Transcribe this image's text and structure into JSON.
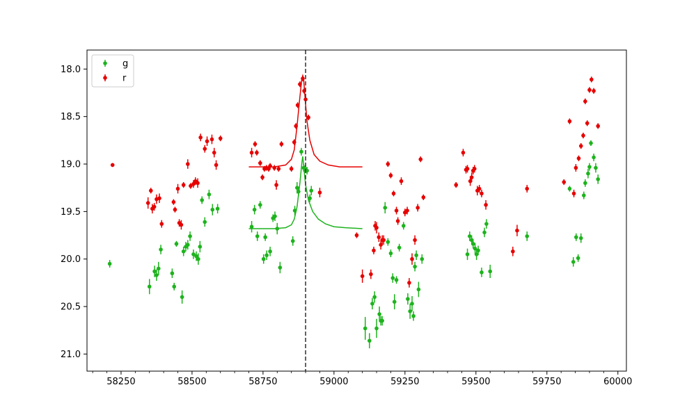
{
  "chart_data": {
    "type": "scatter",
    "title": "",
    "xlabel": "",
    "ylabel": "",
    "xlim": [
      58130,
      60030
    ],
    "ylim": [
      21.18,
      17.8
    ],
    "y_inverted": true,
    "grid": false,
    "legend_placement": "top-left",
    "x_ticks": [
      58250,
      58500,
      58750,
      59000,
      59250,
      59500,
      59750,
      60000
    ],
    "x_tick_labels": [
      "58250",
      "58500",
      "58750",
      "59000",
      "59250",
      "59500",
      "59750",
      "60000"
    ],
    "y_ticks": [
      18.0,
      18.5,
      19.0,
      19.5,
      20.0,
      20.5,
      21.0
    ],
    "y_tick_labels": [
      "18.0",
      "18.5",
      "19.0",
      "19.5",
      "20.0",
      "20.5",
      "21.0"
    ],
    "vline": {
      "x": 58900,
      "style": "dashed",
      "color": "#3c3c3c"
    },
    "series": [
      {
        "name": "g",
        "color": "#1db31d",
        "marker": "errorbar",
        "points": [
          [
            58210,
            20.05,
            0.04
          ],
          [
            58350,
            20.29,
            0.08
          ],
          [
            58368,
            20.13,
            0.06
          ],
          [
            58375,
            20.17,
            0.06
          ],
          [
            58382,
            20.1,
            0.07
          ],
          [
            58390,
            19.9,
            0.05
          ],
          [
            58430,
            20.15,
            0.05
          ],
          [
            58437,
            20.29,
            0.04
          ],
          [
            58445,
            19.84,
            0.03
          ],
          [
            58465,
            20.4,
            0.07
          ],
          [
            58470,
            19.92,
            0.05
          ],
          [
            58478,
            19.87,
            0.05
          ],
          [
            58485,
            19.85,
            0.05
          ],
          [
            58493,
            19.76,
            0.05
          ],
          [
            58505,
            19.95,
            0.05
          ],
          [
            58515,
            19.97,
            0.05
          ],
          [
            58522,
            20.0,
            0.06
          ],
          [
            58528,
            19.87,
            0.06
          ],
          [
            58535,
            19.38,
            0.04
          ],
          [
            58545,
            19.61,
            0.05
          ],
          [
            58560,
            19.32,
            0.05
          ],
          [
            58572,
            19.48,
            0.06
          ],
          [
            58590,
            19.47,
            0.05
          ],
          [
            58710,
            19.66,
            0.06
          ],
          [
            58720,
            19.48,
            0.05
          ],
          [
            58730,
            19.76,
            0.05
          ],
          [
            58740,
            19.43,
            0.04
          ],
          [
            58752,
            20.0,
            0.05
          ],
          [
            58758,
            19.77,
            0.04
          ],
          [
            58763,
            19.96,
            0.05
          ],
          [
            58775,
            19.92,
            0.05
          ],
          [
            58785,
            19.57,
            0.04
          ],
          [
            58792,
            19.55,
            0.05
          ],
          [
            58800,
            19.68,
            0.06
          ],
          [
            58810,
            20.09,
            0.06
          ],
          [
            58855,
            19.81,
            0.05
          ],
          [
            58862,
            19.49,
            0.05
          ],
          [
            58870,
            19.25,
            0.06
          ],
          [
            58875,
            19.29,
            0.05
          ],
          [
            58885,
            18.87,
            0.04
          ],
          [
            58893,
            19.04,
            0.04
          ],
          [
            58898,
            19.05,
            0.04
          ],
          [
            58905,
            19.07,
            0.04
          ],
          [
            58915,
            19.36,
            0.04
          ],
          [
            58920,
            19.28,
            0.05
          ],
          [
            59110,
            20.73,
            0.12
          ],
          [
            59125,
            20.86,
            0.08
          ],
          [
            59135,
            20.47,
            0.06
          ],
          [
            59143,
            20.4,
            0.06
          ],
          [
            59150,
            20.73,
            0.1
          ],
          [
            59160,
            20.58,
            0.08
          ],
          [
            59165,
            20.65,
            0.05
          ],
          [
            59170,
            20.65,
            0.05
          ],
          [
            59180,
            19.46,
            0.06
          ],
          [
            59190,
            19.82,
            0.04
          ],
          [
            59200,
            19.94,
            0.04
          ],
          [
            59207,
            20.2,
            0.05
          ],
          [
            59213,
            20.45,
            0.08
          ],
          [
            59220,
            20.22,
            0.04
          ],
          [
            59230,
            19.88,
            0.04
          ],
          [
            59245,
            19.65,
            0.04
          ],
          [
            59260,
            20.42,
            0.06
          ],
          [
            59268,
            20.55,
            0.08
          ],
          [
            59275,
            20.47,
            0.08
          ],
          [
            59280,
            20.6,
            0.05
          ],
          [
            59285,
            20.08,
            0.05
          ],
          [
            59290,
            19.96,
            0.05
          ],
          [
            59298,
            20.32,
            0.08
          ],
          [
            59310,
            20.0,
            0.05
          ],
          [
            59470,
            19.95,
            0.06
          ],
          [
            59478,
            19.76,
            0.05
          ],
          [
            59485,
            19.8,
            0.05
          ],
          [
            59490,
            19.84,
            0.05
          ],
          [
            59497,
            19.89,
            0.06
          ],
          [
            59502,
            19.95,
            0.06
          ],
          [
            59508,
            19.91,
            0.05
          ],
          [
            59520,
            20.14,
            0.05
          ],
          [
            59530,
            19.72,
            0.05
          ],
          [
            59537,
            19.63,
            0.05
          ],
          [
            59550,
            20.13,
            0.07
          ],
          [
            59680,
            19.76,
            0.05
          ],
          [
            59830,
            19.26,
            0.03
          ],
          [
            59843,
            20.03,
            0.05
          ],
          [
            59853,
            19.77,
            0.04
          ],
          [
            59860,
            19.99,
            0.04
          ],
          [
            59870,
            19.78,
            0.05
          ],
          [
            59880,
            19.33,
            0.04
          ],
          [
            59885,
            19.2,
            0.04
          ],
          [
            59895,
            19.1,
            0.05
          ],
          [
            59900,
            19.03,
            0.04
          ],
          [
            59905,
            18.78,
            0.03
          ],
          [
            59915,
            18.93,
            0.04
          ],
          [
            59922,
            19.04,
            0.05
          ],
          [
            59930,
            19.16,
            0.05
          ]
        ],
        "model": [
          [
            58700,
            19.68
          ],
          [
            58790,
            19.68
          ],
          [
            58830,
            19.67
          ],
          [
            58850,
            19.64
          ],
          [
            58860,
            19.58
          ],
          [
            58870,
            19.45
          ],
          [
            58880,
            19.2
          ],
          [
            58887,
            18.98
          ],
          [
            58890,
            18.92
          ],
          [
            58892,
            18.98
          ],
          [
            58896,
            19.1
          ],
          [
            58900,
            19.22
          ],
          [
            58910,
            19.38
          ],
          [
            58925,
            19.5
          ],
          [
            58945,
            19.58
          ],
          [
            58970,
            19.63
          ],
          [
            59000,
            19.66
          ],
          [
            59040,
            19.67
          ],
          [
            59100,
            19.68
          ]
        ]
      },
      {
        "name": "r",
        "color": "#e60000",
        "marker": "errorbar",
        "points": [
          [
            58220,
            19.01,
            0.02
          ],
          [
            58345,
            19.41,
            0.06
          ],
          [
            58355,
            19.28,
            0.03
          ],
          [
            58360,
            19.47,
            0.05
          ],
          [
            58367,
            19.45,
            0.04
          ],
          [
            58375,
            19.37,
            0.05
          ],
          [
            58385,
            19.36,
            0.05
          ],
          [
            58393,
            19.63,
            0.04
          ],
          [
            58435,
            19.4,
            0.03
          ],
          [
            58440,
            19.48,
            0.03
          ],
          [
            58450,
            19.26,
            0.05
          ],
          [
            58455,
            19.62,
            0.04
          ],
          [
            58462,
            19.64,
            0.05
          ],
          [
            58470,
            19.22,
            0.03
          ],
          [
            58485,
            19.0,
            0.05
          ],
          [
            58495,
            19.23,
            0.03
          ],
          [
            58505,
            19.21,
            0.04
          ],
          [
            58512,
            19.18,
            0.04
          ],
          [
            58520,
            19.2,
            0.05
          ],
          [
            58530,
            18.72,
            0.04
          ],
          [
            58545,
            18.84,
            0.04
          ],
          [
            58553,
            18.76,
            0.05
          ],
          [
            58570,
            18.74,
            0.05
          ],
          [
            58578,
            18.88,
            0.05
          ],
          [
            58585,
            19.01,
            0.05
          ],
          [
            58600,
            18.73,
            0.03
          ],
          [
            58710,
            18.88,
            0.05
          ],
          [
            58722,
            18.79,
            0.03
          ],
          [
            58728,
            18.88,
            0.03
          ],
          [
            58740,
            18.99,
            0.03
          ],
          [
            58748,
            19.14,
            0.03
          ],
          [
            58755,
            19.05,
            0.03
          ],
          [
            58762,
            19.04,
            0.03
          ],
          [
            58770,
            19.05,
            0.03
          ],
          [
            58775,
            19.02,
            0.03
          ],
          [
            58790,
            19.04,
            0.03
          ],
          [
            58797,
            19.22,
            0.05
          ],
          [
            58805,
            19.05,
            0.03
          ],
          [
            58815,
            18.79,
            0.03
          ],
          [
            58850,
            19.05,
            0.03
          ],
          [
            58860,
            18.77,
            0.03
          ],
          [
            58866,
            18.6,
            0.03
          ],
          [
            58872,
            18.38,
            0.03
          ],
          [
            58880,
            18.16,
            0.03
          ],
          [
            58890,
            18.1,
            0.03
          ],
          [
            58895,
            18.23,
            0.03
          ],
          [
            58900,
            18.32,
            0.04
          ],
          [
            58910,
            18.51,
            0.03
          ],
          [
            58950,
            19.3,
            0.05
          ],
          [
            59080,
            19.75,
            0.03
          ],
          [
            59100,
            20.18,
            0.07
          ],
          [
            59130,
            20.16,
            0.05
          ],
          [
            59140,
            19.91,
            0.04
          ],
          [
            59145,
            19.65,
            0.05
          ],
          [
            59150,
            19.67,
            0.06
          ],
          [
            59158,
            19.77,
            0.05
          ],
          [
            59165,
            19.85,
            0.05
          ],
          [
            59170,
            19.8,
            0.05
          ],
          [
            59175,
            19.8,
            0.05
          ],
          [
            59190,
            19.0,
            0.03
          ],
          [
            59200,
            19.12,
            0.03
          ],
          [
            59210,
            19.31,
            0.03
          ],
          [
            59220,
            19.49,
            0.04
          ],
          [
            59225,
            19.6,
            0.04
          ],
          [
            59237,
            19.18,
            0.04
          ],
          [
            59250,
            19.51,
            0.04
          ],
          [
            59258,
            19.49,
            0.04
          ],
          [
            59265,
            20.25,
            0.05
          ],
          [
            59275,
            20.0,
            0.06
          ],
          [
            59285,
            19.8,
            0.05
          ],
          [
            59295,
            19.46,
            0.04
          ],
          [
            59305,
            18.95,
            0.03
          ],
          [
            59315,
            19.35,
            0.03
          ],
          [
            59430,
            19.22,
            0.03
          ],
          [
            59455,
            18.88,
            0.04
          ],
          [
            59465,
            19.06,
            0.04
          ],
          [
            59470,
            19.05,
            0.04
          ],
          [
            59480,
            19.18,
            0.05
          ],
          [
            59485,
            19.14,
            0.05
          ],
          [
            59490,
            19.07,
            0.04
          ],
          [
            59495,
            19.05,
            0.04
          ],
          [
            59505,
            19.28,
            0.05
          ],
          [
            59512,
            19.26,
            0.04
          ],
          [
            59520,
            19.31,
            0.04
          ],
          [
            59535,
            19.43,
            0.05
          ],
          [
            59630,
            19.92,
            0.05
          ],
          [
            59645,
            19.7,
            0.06
          ],
          [
            59680,
            19.26,
            0.04
          ],
          [
            59810,
            19.19,
            0.03
          ],
          [
            59830,
            18.55,
            0.03
          ],
          [
            59845,
            19.31,
            0.04
          ],
          [
            59852,
            19.04,
            0.04
          ],
          [
            59862,
            18.94,
            0.03
          ],
          [
            59870,
            18.81,
            0.03
          ],
          [
            59878,
            18.7,
            0.03
          ],
          [
            59885,
            18.34,
            0.03
          ],
          [
            59892,
            18.57,
            0.03
          ],
          [
            59900,
            18.22,
            0.03
          ],
          [
            59907,
            18.11,
            0.03
          ],
          [
            59915,
            18.23,
            0.03
          ],
          [
            59930,
            18.6,
            0.03
          ]
        ],
        "model": [
          [
            58700,
            19.03
          ],
          [
            58790,
            19.03
          ],
          [
            58830,
            19.01
          ],
          [
            58850,
            18.95
          ],
          [
            58860,
            18.85
          ],
          [
            58870,
            18.6
          ],
          [
            58878,
            18.35
          ],
          [
            58886,
            18.12
          ],
          [
            58890,
            18.07
          ],
          [
            58893,
            18.1
          ],
          [
            58898,
            18.3
          ],
          [
            58905,
            18.55
          ],
          [
            58915,
            18.75
          ],
          [
            58930,
            18.9
          ],
          [
            58950,
            18.97
          ],
          [
            58980,
            19.01
          ],
          [
            59020,
            19.03
          ],
          [
            59100,
            19.03
          ]
        ]
      }
    ]
  }
}
